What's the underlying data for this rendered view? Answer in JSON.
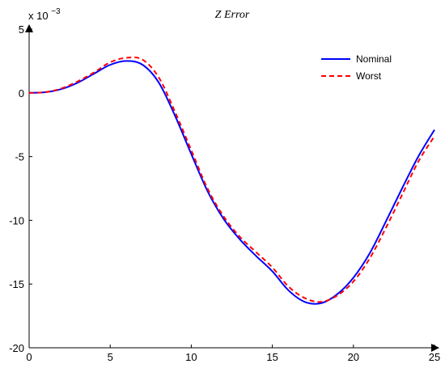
{
  "chart_data": {
    "type": "line",
    "title": "Z Error",
    "xlabel": "",
    "ylabel": "",
    "y_multiplier": {
      "base": "x 10",
      "exponent": "−3"
    },
    "xlim": [
      0,
      25
    ],
    "ylim": [
      -20,
      5
    ],
    "x_ticks": [
      0,
      5,
      10,
      15,
      20,
      25
    ],
    "y_ticks": [
      5,
      0,
      -5,
      -10,
      -15,
      -20
    ],
    "x_tick_labels": [
      "0",
      "5",
      "10",
      "15",
      "20",
      "25"
    ],
    "y_tick_labels": [
      "5",
      "0",
      "-5",
      "-10",
      "-15",
      "-20"
    ],
    "grid": false,
    "legend_position": "top-right",
    "series": [
      {
        "name": "Nominal",
        "color": "#0000ff",
        "style": "solid",
        "x": [
          0,
          1,
          2,
          3,
          4,
          5,
          6,
          7,
          8,
          9,
          10,
          11,
          12,
          13,
          14,
          15,
          16,
          17,
          18,
          19,
          20,
          21,
          22,
          23,
          24,
          25
        ],
        "y": [
          0.0,
          0.05,
          0.3,
          0.8,
          1.5,
          2.2,
          2.5,
          2.2,
          0.8,
          -1.8,
          -4.8,
          -7.7,
          -9.9,
          -11.5,
          -12.8,
          -14.0,
          -15.5,
          -16.4,
          -16.5,
          -15.8,
          -14.5,
          -12.6,
          -10.1,
          -7.5,
          -5.0,
          -2.9
        ]
      },
      {
        "name": "Worst",
        "color": "#ff0000",
        "style": "dashed",
        "x": [
          0,
          1,
          2,
          3,
          4,
          5,
          6,
          7,
          8,
          9,
          10,
          11,
          12,
          13,
          14,
          15,
          16,
          17,
          18,
          19,
          20,
          21,
          22,
          23,
          24,
          25
        ],
        "y": [
          0.0,
          0.05,
          0.35,
          0.9,
          1.6,
          2.4,
          2.75,
          2.6,
          1.2,
          -1.5,
          -4.5,
          -7.5,
          -9.7,
          -11.3,
          -12.5,
          -13.7,
          -15.2,
          -16.1,
          -16.4,
          -15.9,
          -14.8,
          -13.0,
          -10.6,
          -8.0,
          -5.4,
          -3.4
        ]
      }
    ]
  }
}
